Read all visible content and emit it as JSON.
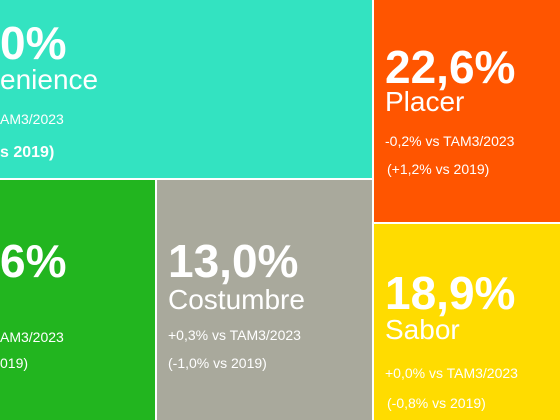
{
  "tiles": [
    {
      "share": "0%",
      "label": "enience",
      "vs_tam": "AM3/2023",
      "vs_2019": "s 2019)"
    },
    {
      "share": "22,6%",
      "label": "Placer",
      "vs_tam": "-0,2% vs TAM3/2023",
      "vs_2019": "(+1,2% vs 2019)"
    },
    {
      "share": "6%",
      "vs_tam": "AM3/2023",
      "vs_2019": "019)"
    },
    {
      "share": "13,0%",
      "label": "Costumbre",
      "vs_tam": "+0,3% vs TAM3/2023",
      "vs_2019": "(-1,0% vs 2019)"
    },
    {
      "share": "18,9%",
      "label": "Sabor",
      "vs_tam": "+0,0% vs TAM3/2023",
      "vs_2019": "(-0,8% vs 2019)"
    }
  ]
}
